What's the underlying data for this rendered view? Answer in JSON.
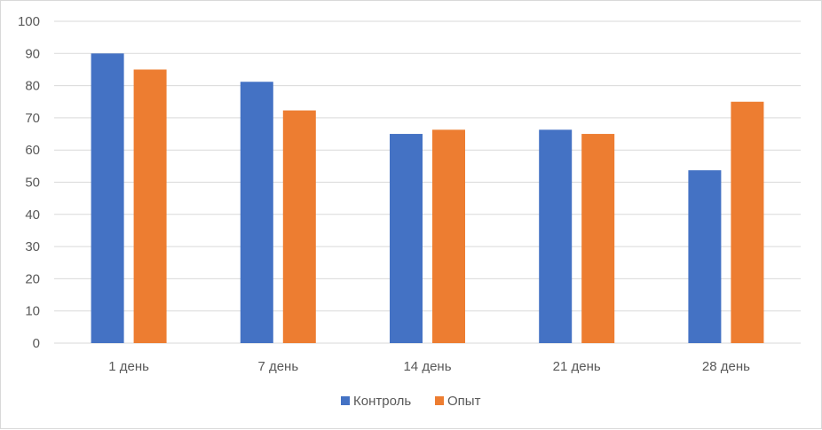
{
  "chart_data": {
    "type": "bar",
    "title": "",
    "xlabel": "",
    "ylabel": "",
    "categories": [
      "1 день",
      "7 день",
      "14 день",
      "21 день",
      "28 день"
    ],
    "series": [
      {
        "name": "Контроль",
        "color": "#4472c4",
        "values": [
          90,
          81.2,
          65,
          66.3,
          53.7
        ]
      },
      {
        "name": "Опыт",
        "color": "#ed7d31",
        "values": [
          85,
          72.3,
          66.3,
          65,
          75
        ]
      }
    ],
    "ylim": [
      0,
      100
    ],
    "yticks": [
      0,
      10,
      20,
      30,
      40,
      50,
      60,
      70,
      80,
      90,
      100
    ],
    "grid": true,
    "legend_position": "bottom"
  }
}
